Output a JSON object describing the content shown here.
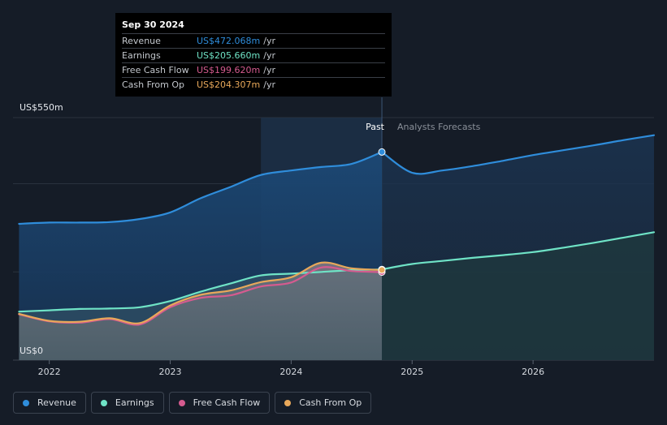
{
  "tooltip": {
    "date": "Sep 30 2024",
    "rows": [
      {
        "name": "Revenue",
        "value": "US$472.068m",
        "unit": "/yr",
        "color": "#2f8ddb"
      },
      {
        "name": "Earnings",
        "value": "US$205.660m",
        "unit": "/yr",
        "color": "#6fe3c6"
      },
      {
        "name": "Free Cash Flow",
        "value": "US$199.620m",
        "unit": "/yr",
        "color": "#d55b8f"
      },
      {
        "name": "Cash From Op",
        "value": "US$204.307m",
        "unit": "/yr",
        "color": "#e8a85a"
      }
    ]
  },
  "legend": [
    {
      "label": "Revenue",
      "color": "#2f8ddb"
    },
    {
      "label": "Earnings",
      "color": "#6fe3c6"
    },
    {
      "label": "Free Cash Flow",
      "color": "#d55b8f"
    },
    {
      "label": "Cash From Op",
      "color": "#e8a85a"
    }
  ],
  "chart_data": {
    "type": "line",
    "y_top_label": "US$550m",
    "y_bottom_label": "US$0",
    "ylim": [
      0,
      550
    ],
    "xlim": [
      2021.7,
      2027.0
    ],
    "x_ticks": [
      {
        "label": "2022",
        "x": 2022.0
      },
      {
        "label": "2023",
        "x": 2023.0
      },
      {
        "label": "2024",
        "x": 2024.0
      },
      {
        "label": "2025",
        "x": 2025.0
      },
      {
        "label": "2026",
        "x": 2026.0
      }
    ],
    "past_label": "Past",
    "forecast_label": "Analysts Forecasts",
    "past_end": 2024.75,
    "highlight_start": 2023.75,
    "series": [
      {
        "name": "Revenue",
        "color": "#2f8ddb",
        "points": [
          [
            2021.75,
            309
          ],
          [
            2022.0,
            312
          ],
          [
            2022.25,
            312
          ],
          [
            2022.5,
            313
          ],
          [
            2022.75,
            320
          ],
          [
            2023.0,
            335
          ],
          [
            2023.25,
            367
          ],
          [
            2023.5,
            393
          ],
          [
            2023.75,
            420
          ],
          [
            2024.0,
            430
          ],
          [
            2024.25,
            438
          ],
          [
            2024.5,
            445
          ],
          [
            2024.75,
            472
          ]
        ],
        "forecast": [
          [
            2024.75,
            472
          ],
          [
            2025.0,
            425
          ],
          [
            2025.25,
            430
          ],
          [
            2025.5,
            440
          ],
          [
            2025.75,
            452
          ],
          [
            2026.0,
            465
          ],
          [
            2026.25,
            476
          ],
          [
            2026.5,
            487
          ],
          [
            2026.75,
            499
          ],
          [
            2027.0,
            510
          ]
        ]
      },
      {
        "name": "Earnings",
        "color": "#6fe3c6",
        "points": [
          [
            2021.75,
            110
          ],
          [
            2022.0,
            113
          ],
          [
            2022.25,
            116
          ],
          [
            2022.5,
            117
          ],
          [
            2022.75,
            120
          ],
          [
            2023.0,
            134
          ],
          [
            2023.25,
            155
          ],
          [
            2023.5,
            174
          ],
          [
            2023.75,
            192
          ],
          [
            2024.0,
            196
          ],
          [
            2024.25,
            200
          ],
          [
            2024.5,
            204
          ],
          [
            2024.75,
            205.66
          ]
        ],
        "forecast": [
          [
            2024.75,
            205.66
          ],
          [
            2025.0,
            218
          ],
          [
            2025.25,
            225
          ],
          [
            2025.5,
            232
          ],
          [
            2025.75,
            238
          ],
          [
            2026.0,
            245
          ],
          [
            2026.25,
            255
          ],
          [
            2026.5,
            266
          ],
          [
            2026.75,
            278
          ],
          [
            2027.0,
            290
          ]
        ]
      },
      {
        "name": "Free Cash Flow",
        "color": "#d55b8f",
        "points": [
          [
            2021.75,
            104
          ],
          [
            2022.0,
            88
          ],
          [
            2022.25,
            85
          ],
          [
            2022.5,
            93
          ],
          [
            2022.75,
            81
          ],
          [
            2023.0,
            120
          ],
          [
            2023.25,
            141
          ],
          [
            2023.5,
            147
          ],
          [
            2023.75,
            167
          ],
          [
            2024.0,
            176
          ],
          [
            2024.25,
            210
          ],
          [
            2024.5,
            202
          ],
          [
            2024.75,
            199.62
          ]
        ]
      },
      {
        "name": "Cash From Op",
        "color": "#e8a85a",
        "points": [
          [
            2021.75,
            105
          ],
          [
            2022.0,
            89
          ],
          [
            2022.25,
            87
          ],
          [
            2022.5,
            95
          ],
          [
            2022.75,
            84
          ],
          [
            2023.0,
            124
          ],
          [
            2023.25,
            148
          ],
          [
            2023.5,
            158
          ],
          [
            2023.75,
            177
          ],
          [
            2024.0,
            188
          ],
          [
            2024.25,
            221
          ],
          [
            2024.5,
            208
          ],
          [
            2024.75,
            204.31
          ]
        ]
      }
    ]
  }
}
